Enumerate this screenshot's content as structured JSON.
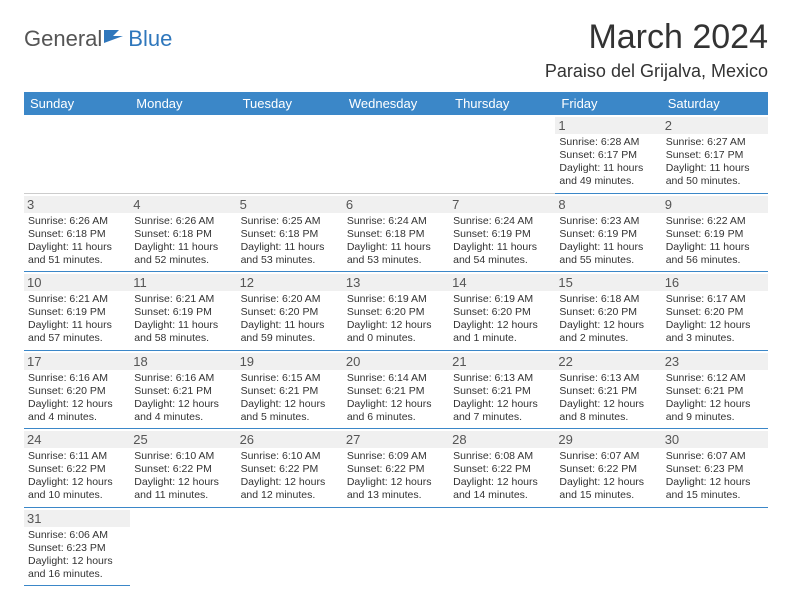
{
  "logo": {
    "part1": "General",
    "part2": "Blue"
  },
  "header": {
    "month_title": "March 2024",
    "location": "Paraiso del Grijalva, Mexico"
  },
  "colors": {
    "header_bg": "#3b87c8",
    "header_text": "#ffffff",
    "border": "#3b87c8",
    "daynum_bg": "#f0f0f0",
    "logo_blue": "#2f77bc"
  },
  "weekdays": [
    "Sunday",
    "Monday",
    "Tuesday",
    "Wednesday",
    "Thursday",
    "Friday",
    "Saturday"
  ],
  "weeks": [
    [
      null,
      null,
      null,
      null,
      null,
      {
        "n": "1",
        "sr": "Sunrise: 6:28 AM",
        "ss": "Sunset: 6:17 PM",
        "dl": "Daylight: 11 hours and 49 minutes."
      },
      {
        "n": "2",
        "sr": "Sunrise: 6:27 AM",
        "ss": "Sunset: 6:17 PM",
        "dl": "Daylight: 11 hours and 50 minutes."
      }
    ],
    [
      {
        "n": "3",
        "sr": "Sunrise: 6:26 AM",
        "ss": "Sunset: 6:18 PM",
        "dl": "Daylight: 11 hours and 51 minutes."
      },
      {
        "n": "4",
        "sr": "Sunrise: 6:26 AM",
        "ss": "Sunset: 6:18 PM",
        "dl": "Daylight: 11 hours and 52 minutes."
      },
      {
        "n": "5",
        "sr": "Sunrise: 6:25 AM",
        "ss": "Sunset: 6:18 PM",
        "dl": "Daylight: 11 hours and 53 minutes."
      },
      {
        "n": "6",
        "sr": "Sunrise: 6:24 AM",
        "ss": "Sunset: 6:18 PM",
        "dl": "Daylight: 11 hours and 53 minutes."
      },
      {
        "n": "7",
        "sr": "Sunrise: 6:24 AM",
        "ss": "Sunset: 6:19 PM",
        "dl": "Daylight: 11 hours and 54 minutes."
      },
      {
        "n": "8",
        "sr": "Sunrise: 6:23 AM",
        "ss": "Sunset: 6:19 PM",
        "dl": "Daylight: 11 hours and 55 minutes."
      },
      {
        "n": "9",
        "sr": "Sunrise: 6:22 AM",
        "ss": "Sunset: 6:19 PM",
        "dl": "Daylight: 11 hours and 56 minutes."
      }
    ],
    [
      {
        "n": "10",
        "sr": "Sunrise: 6:21 AM",
        "ss": "Sunset: 6:19 PM",
        "dl": "Daylight: 11 hours and 57 minutes."
      },
      {
        "n": "11",
        "sr": "Sunrise: 6:21 AM",
        "ss": "Sunset: 6:19 PM",
        "dl": "Daylight: 11 hours and 58 minutes."
      },
      {
        "n": "12",
        "sr": "Sunrise: 6:20 AM",
        "ss": "Sunset: 6:20 PM",
        "dl": "Daylight: 11 hours and 59 minutes."
      },
      {
        "n": "13",
        "sr": "Sunrise: 6:19 AM",
        "ss": "Sunset: 6:20 PM",
        "dl": "Daylight: 12 hours and 0 minutes."
      },
      {
        "n": "14",
        "sr": "Sunrise: 6:19 AM",
        "ss": "Sunset: 6:20 PM",
        "dl": "Daylight: 12 hours and 1 minute."
      },
      {
        "n": "15",
        "sr": "Sunrise: 6:18 AM",
        "ss": "Sunset: 6:20 PM",
        "dl": "Daylight: 12 hours and 2 minutes."
      },
      {
        "n": "16",
        "sr": "Sunrise: 6:17 AM",
        "ss": "Sunset: 6:20 PM",
        "dl": "Daylight: 12 hours and 3 minutes."
      }
    ],
    [
      {
        "n": "17",
        "sr": "Sunrise: 6:16 AM",
        "ss": "Sunset: 6:20 PM",
        "dl": "Daylight: 12 hours and 4 minutes."
      },
      {
        "n": "18",
        "sr": "Sunrise: 6:16 AM",
        "ss": "Sunset: 6:21 PM",
        "dl": "Daylight: 12 hours and 4 minutes."
      },
      {
        "n": "19",
        "sr": "Sunrise: 6:15 AM",
        "ss": "Sunset: 6:21 PM",
        "dl": "Daylight: 12 hours and 5 minutes."
      },
      {
        "n": "20",
        "sr": "Sunrise: 6:14 AM",
        "ss": "Sunset: 6:21 PM",
        "dl": "Daylight: 12 hours and 6 minutes."
      },
      {
        "n": "21",
        "sr": "Sunrise: 6:13 AM",
        "ss": "Sunset: 6:21 PM",
        "dl": "Daylight: 12 hours and 7 minutes."
      },
      {
        "n": "22",
        "sr": "Sunrise: 6:13 AM",
        "ss": "Sunset: 6:21 PM",
        "dl": "Daylight: 12 hours and 8 minutes."
      },
      {
        "n": "23",
        "sr": "Sunrise: 6:12 AM",
        "ss": "Sunset: 6:21 PM",
        "dl": "Daylight: 12 hours and 9 minutes."
      }
    ],
    [
      {
        "n": "24",
        "sr": "Sunrise: 6:11 AM",
        "ss": "Sunset: 6:22 PM",
        "dl": "Daylight: 12 hours and 10 minutes."
      },
      {
        "n": "25",
        "sr": "Sunrise: 6:10 AM",
        "ss": "Sunset: 6:22 PM",
        "dl": "Daylight: 12 hours and 11 minutes."
      },
      {
        "n": "26",
        "sr": "Sunrise: 6:10 AM",
        "ss": "Sunset: 6:22 PM",
        "dl": "Daylight: 12 hours and 12 minutes."
      },
      {
        "n": "27",
        "sr": "Sunrise: 6:09 AM",
        "ss": "Sunset: 6:22 PM",
        "dl": "Daylight: 12 hours and 13 minutes."
      },
      {
        "n": "28",
        "sr": "Sunrise: 6:08 AM",
        "ss": "Sunset: 6:22 PM",
        "dl": "Daylight: 12 hours and 14 minutes."
      },
      {
        "n": "29",
        "sr": "Sunrise: 6:07 AM",
        "ss": "Sunset: 6:22 PM",
        "dl": "Daylight: 12 hours and 15 minutes."
      },
      {
        "n": "30",
        "sr": "Sunrise: 6:07 AM",
        "ss": "Sunset: 6:23 PM",
        "dl": "Daylight: 12 hours and 15 minutes."
      }
    ],
    [
      {
        "n": "31",
        "sr": "Sunrise: 6:06 AM",
        "ss": "Sunset: 6:23 PM",
        "dl": "Daylight: 12 hours and 16 minutes."
      },
      null,
      null,
      null,
      null,
      null,
      null
    ]
  ]
}
